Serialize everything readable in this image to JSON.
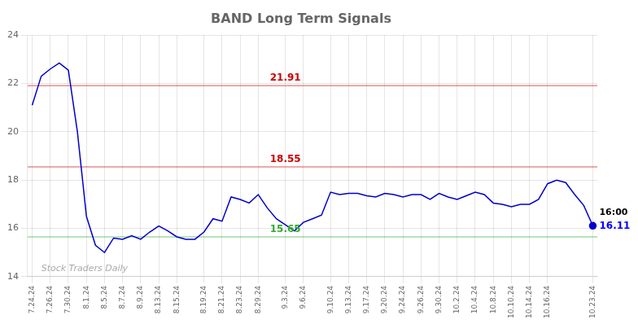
{
  "chart_data": {
    "type": "line",
    "title": "BAND Long Term Signals",
    "categories": [
      "7.24.24",
      null,
      "7.26.24",
      null,
      "7.30.24",
      null,
      "8.1.24",
      null,
      "8.5.24",
      null,
      "8.7.24",
      null,
      "8.9.24",
      null,
      "8.13.24",
      null,
      "8.15.24",
      null,
      null,
      "8.19.24",
      null,
      "8.21.24",
      null,
      "8.23.24",
      null,
      "8.29.24",
      null,
      null,
      "9.3.24",
      null,
      "9.6.24",
      null,
      null,
      "9.10.24",
      null,
      "9.13.24",
      null,
      "9.17.24",
      null,
      "9.20.24",
      null,
      "9.24.24",
      null,
      "9.26.24",
      null,
      "9.30.24",
      null,
      "10.2.24",
      null,
      "10.4.24",
      null,
      "10.8.24",
      null,
      "10.10.24",
      null,
      "10.14.24",
      null,
      "10.16.24",
      null,
      null,
      null,
      null,
      "10.23.24"
    ],
    "values": [
      21.1,
      22.3,
      22.6,
      22.85,
      22.55,
      20.0,
      16.5,
      15.3,
      15.0,
      15.6,
      15.55,
      15.7,
      15.55,
      15.85,
      16.1,
      15.9,
      15.65,
      15.55,
      15.55,
      15.85,
      16.4,
      16.3,
      17.3,
      17.2,
      17.05,
      17.4,
      16.85,
      16.4,
      16.15,
      15.9,
      16.25,
      16.4,
      16.55,
      17.5,
      17.4,
      17.45,
      17.45,
      17.35,
      17.3,
      17.45,
      17.4,
      17.3,
      17.4,
      17.4,
      17.2,
      17.45,
      17.3,
      17.2,
      17.35,
      17.5,
      17.4,
      17.05,
      17.0,
      16.9,
      17.0,
      17.0,
      17.2,
      17.85,
      18.0,
      17.9,
      17.4,
      16.95,
      16.11
    ],
    "color": "#0000cc",
    "ylim": [
      14,
      24
    ],
    "yticks": [
      14,
      16,
      18,
      20,
      22,
      24
    ],
    "grid": true,
    "reference_lines": [
      {
        "value": 21.91,
        "color": "#cc0000"
      },
      {
        "value": 18.55,
        "color": "#cc0000"
      },
      {
        "value": 15.65,
        "color": "#33aa33"
      }
    ],
    "annotations": [
      {
        "text": "16:00",
        "color": "#000000"
      },
      {
        "text": "16.11",
        "color": "#0000ff"
      },
      {
        "text": "Stock Traders Daily",
        "color": "#aaaaaa"
      }
    ]
  }
}
